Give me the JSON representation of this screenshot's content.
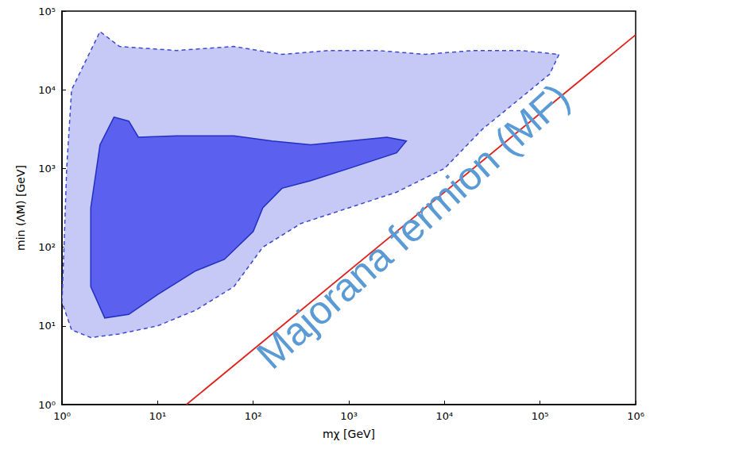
{
  "chart_data": {
    "type": "line",
    "log": true,
    "grid": false,
    "xlabel": "mχ [GeV]",
    "ylabel": "min (ΛM) [GeV]",
    "xlim": [
      1,
      1000000
    ],
    "ylim": [
      1,
      100000
    ],
    "xticks": [
      {
        "value": 1,
        "label": "10⁰"
      },
      {
        "value": 10,
        "label": "10¹"
      },
      {
        "value": 100,
        "label": "10²"
      },
      {
        "value": 1000,
        "label": "10³"
      },
      {
        "value": 10000,
        "label": "10⁴"
      },
      {
        "value": 100000,
        "label": "10⁵"
      },
      {
        "value": 1000000,
        "label": "10⁶"
      }
    ],
    "yticks": [
      {
        "value": 1,
        "label": "10⁰"
      },
      {
        "value": 10,
        "label": "10¹"
      },
      {
        "value": 100,
        "label": "10²"
      },
      {
        "value": 1000,
        "label": "10³"
      },
      {
        "value": 10000,
        "label": "10⁴"
      },
      {
        "value": 100000,
        "label": "10⁵"
      }
    ],
    "annotations": [
      "Majorana fermion (MF)"
    ],
    "series": [
      {
        "type": "region",
        "color": "#c6c8f6",
        "line_style": "dashed",
        "x": [
          1.0,
          1.05,
          1.12,
          1.26,
          2.5,
          4.0,
          15.8,
          63,
          200,
          630,
          2000,
          6300,
          20000,
          63000,
          158000,
          126000,
          63000,
          25000,
          10000,
          3160,
          1000,
          316,
          126,
          63,
          25,
          10,
          4.0,
          2.0,
          1.26,
          1.0
        ],
        "values": [
          20,
          100,
          1000,
          10000,
          55000,
          35500,
          31600,
          35500,
          28200,
          31600,
          31600,
          28200,
          31600,
          31600,
          28200,
          15800,
          7900,
          3160,
          1000,
          500,
          316,
          200,
          100,
          31.6,
          15.8,
          10,
          7.9,
          7.1,
          8.9,
          20
        ]
      },
      {
        "type": "region",
        "color": "#5c60ee",
        "line_style": "solid",
        "x": [
          2.0,
          2.0,
          2.5,
          3.5,
          5.0,
          6.3,
          15.8,
          63,
          158,
          400,
          1000,
          2500,
          4000,
          3160,
          1000,
          400,
          200,
          126,
          100,
          50,
          25,
          10,
          5.0,
          2.8,
          2.0
        ],
        "values": [
          31.6,
          316,
          2000,
          4500,
          4000,
          2500,
          2600,
          2600,
          2240,
          2000,
          2240,
          2500,
          2240,
          1580,
          1000,
          700,
          560,
          316,
          158,
          70,
          50,
          25,
          14,
          12.6,
          31.6
        ]
      },
      {
        "type": "line",
        "color": "#e0201b",
        "line_style": "solid",
        "x": [
          20,
          1000000
        ],
        "values": [
          1,
          50000
        ]
      }
    ]
  }
}
